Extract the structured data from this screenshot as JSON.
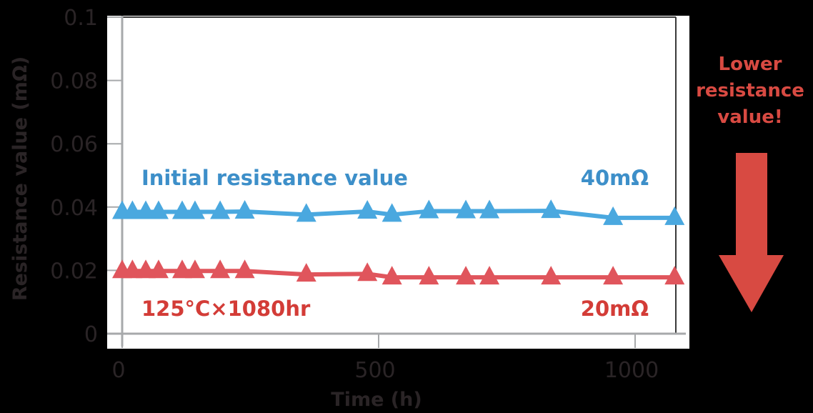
{
  "chart_data": {
    "type": "line",
    "title": "",
    "xlabel": "Time (h)",
    "ylabel": "Resistance value (mΩ)",
    "xlim": [
      0,
      1100
    ],
    "ylim": [
      0,
      0.1
    ],
    "x_ticks": [
      0,
      500,
      1000
    ],
    "x_tick_labels": [
      "0",
      "500",
      "1000"
    ],
    "y_ticks": [
      0,
      0.02,
      0.04,
      0.06,
      0.08,
      0.1
    ],
    "y_tick_labels": [
      "0",
      "0.02",
      "0.04",
      "0.06",
      "0.08",
      "0.1"
    ],
    "grid": false,
    "legend": "none",
    "marker": "triangle",
    "x": [
      0,
      20,
      46,
      71,
      117,
      142,
      191,
      239,
      359,
      478,
      526,
      598,
      670,
      716,
      836,
      957,
      1077
    ],
    "series": [
      {
        "name": "40mΩ",
        "color": "#4aa8df",
        "values": [
          0.0385,
          0.0385,
          0.0385,
          0.0385,
          0.0385,
          0.0385,
          0.0385,
          0.0386,
          0.0376,
          0.0386,
          0.0376,
          0.0387,
          0.0387,
          0.0387,
          0.0388,
          0.0366,
          0.0366
        ]
      },
      {
        "name": "20mΩ",
        "color": "#e0555c",
        "values": [
          0.0198,
          0.0198,
          0.0198,
          0.0198,
          0.0198,
          0.0198,
          0.0198,
          0.0198,
          0.0187,
          0.0189,
          0.0178,
          0.0178,
          0.0178,
          0.0178,
          0.0178,
          0.0178,
          0.0178
        ]
      }
    ],
    "annotations": [
      {
        "text": "Initial resistance value",
        "color": "#3d8fc9"
      },
      {
        "text": "40mΩ",
        "color": "#3d8fc9"
      },
      {
        "text": "125°C×1080hr",
        "color": "#d33c37"
      },
      {
        "text": "20mΩ",
        "color": "#d33c37"
      }
    ]
  },
  "callout": {
    "lines": [
      "Lower",
      "resistance",
      "value!"
    ],
    "color": "#d84a42",
    "icon": "down-arrow-icon"
  },
  "colors": {
    "background": "#000000",
    "plot_background": "#ffffff",
    "axis": "#a7a9ab",
    "frame": "#3a3a3a",
    "tick_text": "#2a2426"
  }
}
